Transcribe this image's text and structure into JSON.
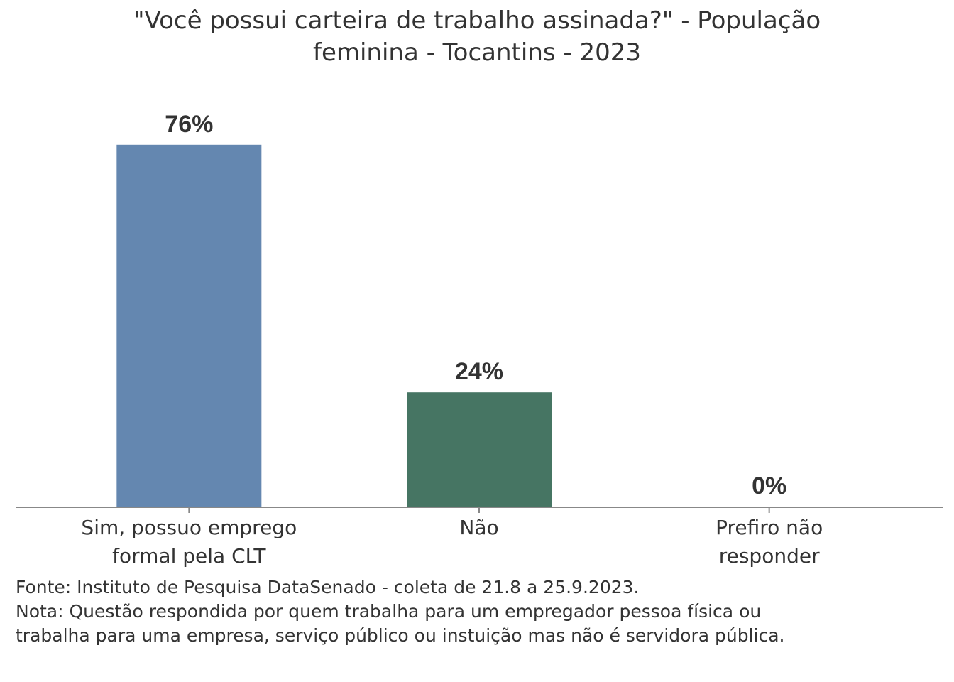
{
  "chart_data": {
    "type": "bar",
    "title": "\"Você possui carteira de trabalho assinada?\" - População feminina - Tocantins - 2023",
    "categories": [
      "Sim, possuo emprego formal pela CLT",
      "Não",
      "Prefiro não responder"
    ],
    "values": [
      76,
      24,
      0
    ],
    "value_labels": [
      "76%",
      "24%",
      "0%"
    ],
    "colors": [
      "#6487b0",
      "#467563",
      "#a5a5a5"
    ],
    "ylim": [
      0,
      100
    ],
    "source": "Fonte: Instituto de Pesquisa DataSenado - coleta de 21.8 a 25.9.2023.",
    "note": "Nota: Questão respondida por quem trabalha para um empregador pessoa física ou trabalha para uma empresa, serviço público ou instuição mas não é servidora pública."
  }
}
